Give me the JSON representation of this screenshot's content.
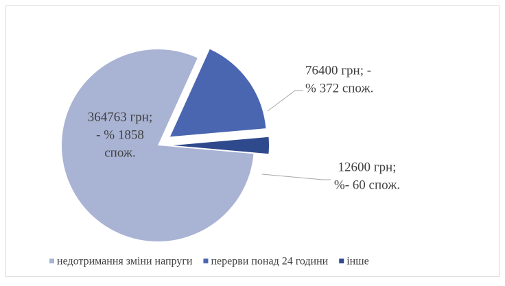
{
  "chart_data": {
    "type": "pie",
    "categories": [
      "недотримання зміни напруги",
      "перерви понад 24 години",
      "інше"
    ],
    "values": [
      364763,
      76400,
      12600
    ],
    "value_labels": [
      [
        "364763 грн;",
        "- % 1858",
        "спож."
      ],
      [
        "76400 грн;  -",
        "% 372 спож."
      ],
      [
        "12600 грн;",
        "%- 60 спож."
      ]
    ],
    "colors": [
      "#a9b3d3",
      "#4a66b1",
      "#2f4a8c"
    ],
    "legend": "bottom"
  }
}
